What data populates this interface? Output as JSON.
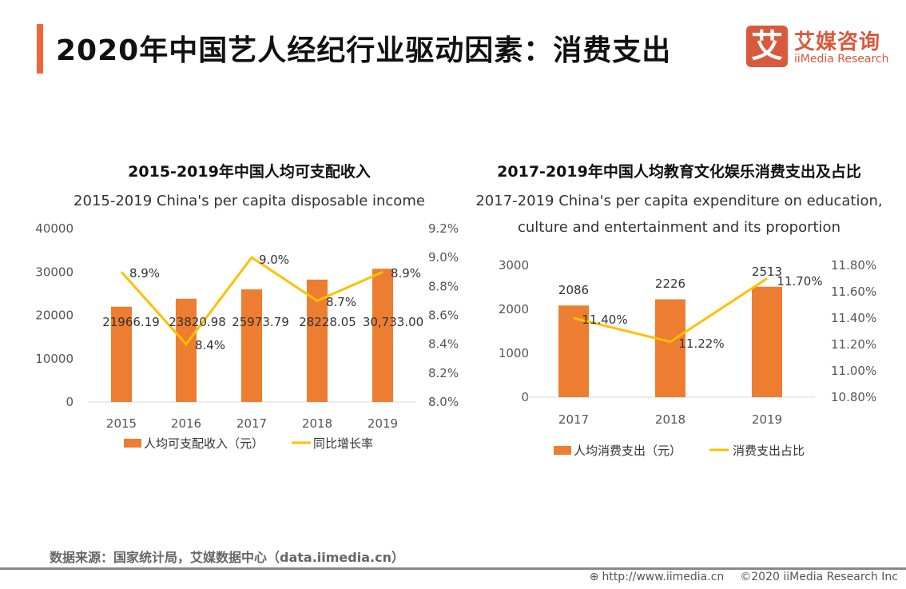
{
  "header": {
    "title": "2020年中国艺人经纪行业驱动因素：消费支出"
  },
  "logo": {
    "mark": "艾",
    "cn": "艾媒咨询",
    "en": "iiMedia Research"
  },
  "chart_data": [
    {
      "type": "bar+line",
      "title": "2015-2019年中国人均可支配收入",
      "subtitle": "2015-2019 China's per capita disposable income",
      "categories": [
        "2015",
        "2016",
        "2017",
        "2018",
        "2019"
      ],
      "series": [
        {
          "name": "人均可支配收入（元）",
          "type": "bar",
          "axis": "left",
          "values": [
            21966.19,
            23820.98,
            25973.79,
            28228.05,
            30733.0
          ],
          "labels": [
            "21966.19",
            "23820.98",
            "25973.79",
            "28228.05",
            "30,733.00"
          ],
          "color": "#ed7d31"
        },
        {
          "name": "同比增长率",
          "type": "line",
          "axis": "right",
          "values": [
            8.9,
            8.4,
            9.0,
            8.7,
            8.9
          ],
          "labels": [
            "8.9%",
            "8.4%",
            "9.0%",
            "8.7%",
            "8.9%"
          ],
          "color": "#ffc000"
        }
      ],
      "yleft": {
        "range": [
          0,
          40000
        ],
        "ticks": [
          "0",
          "10000",
          "20000",
          "30000",
          "40000"
        ]
      },
      "yright": {
        "range": [
          8.0,
          9.2
        ],
        "ticks": [
          "8.0%",
          "8.2%",
          "8.4%",
          "8.6%",
          "8.8%",
          "9.0%",
          "9.2%"
        ]
      },
      "legend": "bottom"
    },
    {
      "type": "bar+line",
      "title": "2017-2019年中国人均教育文化娱乐消费支出及占比",
      "subtitle": "2017-2019 China's per capita expenditure on education,",
      "subtitle2": "culture and entertainment and its proportion",
      "categories": [
        "2017",
        "2018",
        "2019"
      ],
      "series": [
        {
          "name": "人均消费支出（元）",
          "type": "bar",
          "axis": "left",
          "values": [
            2086,
            2226,
            2513
          ],
          "labels": [
            "2086",
            "2226",
            "2513"
          ],
          "color": "#ed7d31"
        },
        {
          "name": "消费支出占比",
          "type": "line",
          "axis": "right",
          "values": [
            11.4,
            11.22,
            11.7
          ],
          "labels": [
            "11.40%",
            "11.22%",
            "11.70%"
          ],
          "color": "#ffc000"
        }
      ],
      "yleft": {
        "range": [
          0,
          3000
        ],
        "ticks": [
          "0",
          "1000",
          "2000",
          "3000"
        ]
      },
      "yright": {
        "range": [
          10.8,
          11.8
        ],
        "ticks": [
          "10.80%",
          "11.00%",
          "11.20%",
          "11.40%",
          "11.60%",
          "11.80%"
        ]
      },
      "legend": "bottom"
    }
  ],
  "footer": {
    "source": "数据来源：国家统计局，艾媒数据中心（data.iimedia.cn）",
    "url": "http://www.iimedia.cn",
    "copyright": "©2020  iiMedia Research  Inc"
  }
}
